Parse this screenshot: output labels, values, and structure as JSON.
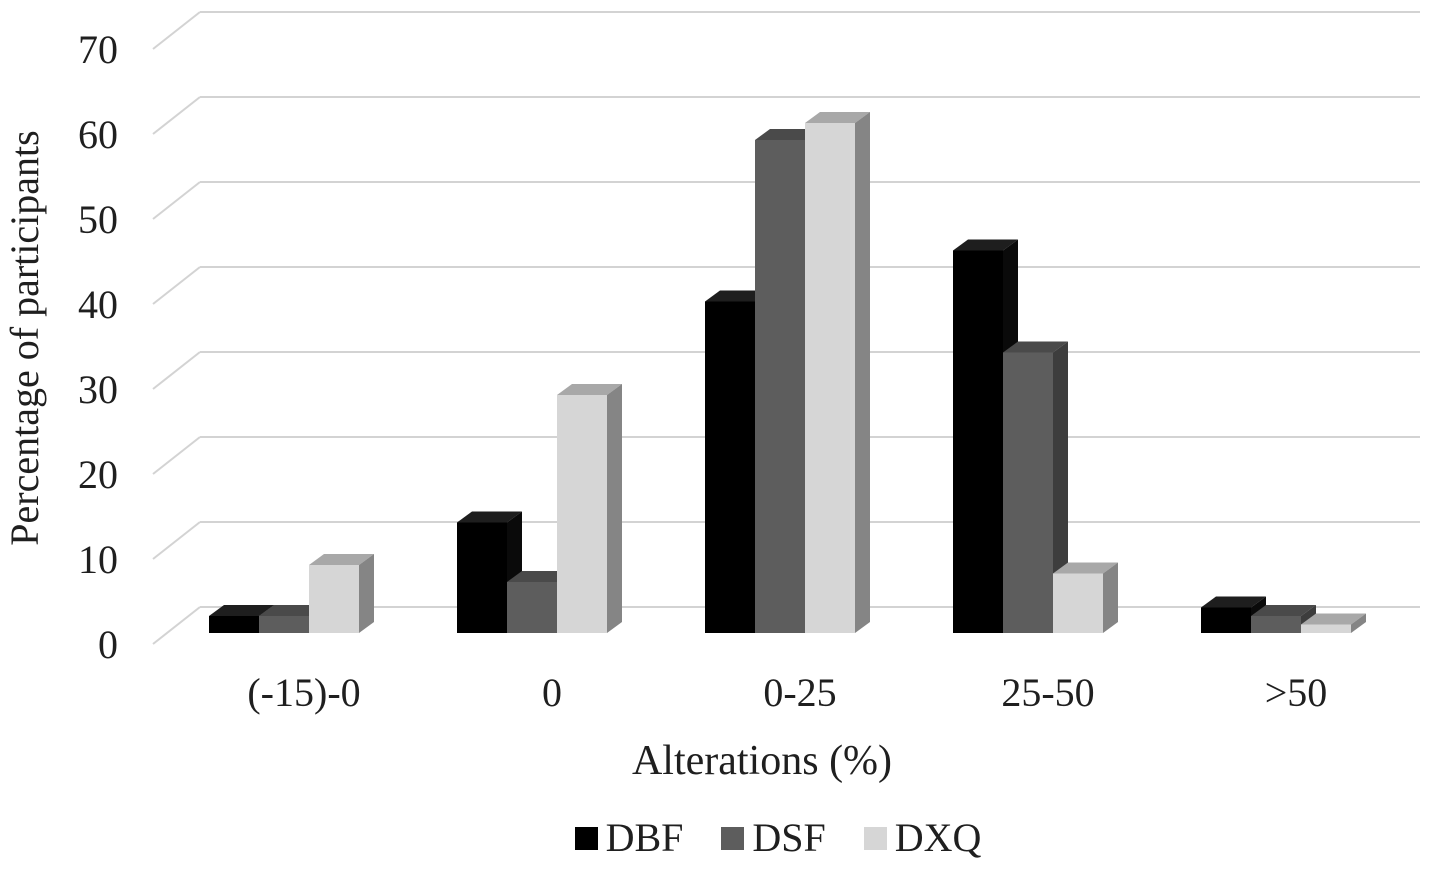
{
  "figure": {
    "background_color": "#ffffff",
    "text_color": "#1f1f1f",
    "gridline_color": "#d3d3d3"
  },
  "chart_data": {
    "type": "bar",
    "subtype": "3d-clustered-column",
    "title": "",
    "xlabel": "Alterations (%)",
    "ylabel": "Percentage of participants",
    "categories": [
      "(-15)-0",
      "0",
      "0-25",
      "25-50",
      ">50"
    ],
    "series": [
      {
        "name": "DBF",
        "color": "#000000",
        "top_color": "#1e1e1e",
        "side_color": "#0a0a0a",
        "values": [
          2,
          13,
          39,
          45,
          3
        ]
      },
      {
        "name": "DSF",
        "color": "#5d5d5d",
        "top_color": "#4a4a4a",
        "side_color": "#3d3d3d",
        "values": [
          2,
          6,
          58,
          33,
          2
        ]
      },
      {
        "name": "DXQ",
        "color": "#d6d6d6",
        "top_color": "#a8a8a8",
        "side_color": "#858585",
        "values": [
          8,
          28,
          60,
          7,
          1
        ]
      }
    ],
    "ylim": [
      0,
      70
    ],
    "yticks": [
      0,
      10,
      20,
      30,
      40,
      50,
      60,
      70
    ],
    "grid": true,
    "legend_position": "bottom"
  }
}
